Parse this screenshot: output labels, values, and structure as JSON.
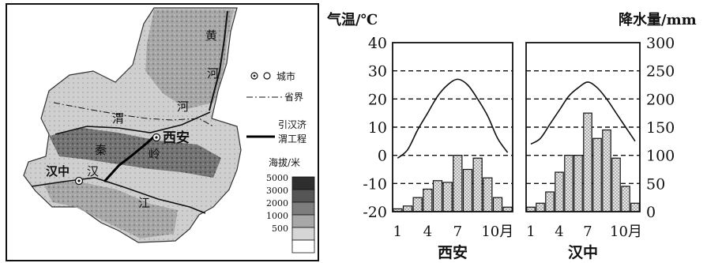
{
  "map": {
    "places": {
      "xian": "西安",
      "hanzhong": "汉中",
      "huang": "黄",
      "he_upper": "河",
      "wei": "渭",
      "he_lower": "河",
      "qin": "秦",
      "ling": "岭",
      "han": "汉",
      "jiang": "江"
    },
    "legend": {
      "city": "城市",
      "province": "省界",
      "project_line1": "引汉济",
      "project_line2": "渭工程",
      "elevation_title": "海拔/米",
      "levels": [
        "5000",
        "3000",
        "2000",
        "1000",
        "500"
      ]
    }
  },
  "chart_axis_left_label": "气温/℃",
  "chart_axis_right_label": "降水量/mm",
  "chart_data": [
    {
      "type": "bar",
      "title": "西安",
      "categories": [
        "1",
        "2",
        "3",
        "4",
        "5",
        "6",
        "7",
        "8",
        "9",
        "10",
        "11",
        "12"
      ],
      "tick_labels": [
        "1",
        "4",
        "7",
        "10月"
      ],
      "series": [
        {
          "kind": "bar",
          "axis": "right",
          "values": [
            5,
            10,
            25,
            40,
            55,
            52,
            100,
            75,
            95,
            60,
            25,
            8
          ]
        },
        {
          "kind": "line",
          "axis": "left",
          "values": [
            -1,
            2,
            9,
            15,
            21,
            25,
            27,
            25,
            20,
            14,
            6,
            1
          ]
        }
      ],
      "ylim_left": [
        -20,
        40
      ],
      "ylim_right": [
        0,
        300
      ],
      "left_ticks": [
        "40",
        "30",
        "20",
        "10",
        "0",
        "-10",
        "-20"
      ],
      "right_ticks": [
        "300",
        "250",
        "200",
        "150",
        "100",
        "50",
        "0"
      ]
    },
    {
      "type": "bar",
      "title": "汉中",
      "categories": [
        "1",
        "2",
        "3",
        "4",
        "5",
        "6",
        "7",
        "8",
        "9",
        "10",
        "11",
        "12"
      ],
      "tick_labels": [
        "1",
        "4",
        "7",
        "10月"
      ],
      "series": [
        {
          "kind": "bar",
          "axis": "right",
          "values": [
            8,
            15,
            35,
            70,
            100,
            100,
            175,
            130,
            145,
            95,
            45,
            15
          ]
        },
        {
          "kind": "line",
          "axis": "left",
          "values": [
            4,
            6,
            11,
            16,
            21,
            24,
            26,
            24,
            20,
            15,
            10,
            5
          ]
        }
      ],
      "ylim_left": [
        -20,
        40
      ],
      "ylim_right": [
        0,
        300
      ]
    }
  ]
}
